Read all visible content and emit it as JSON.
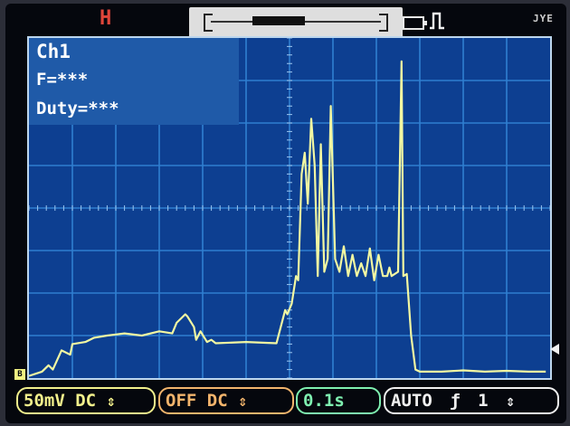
{
  "status": {
    "run_state": "H"
  },
  "brand": "JYE",
  "info": {
    "channel": "Ch1",
    "frequency": "F=***",
    "duty": "Duty=***"
  },
  "markers": {
    "channel_marker": "B"
  },
  "bottom_bar": {
    "vdiv": "50mV",
    "ch1_coupling": "DC",
    "ch2_state": "OFF",
    "ch2_coupling": "DC",
    "timebase": "0.1s",
    "trigger_mode": "AUTO",
    "trigger_edge_symbol": "ƒ",
    "trigger_channel": "1",
    "arrows": "⇕"
  },
  "chart_data": {
    "type": "line",
    "title": "",
    "xlabel": "",
    "ylabel": "",
    "grid": true,
    "divisions": {
      "x": 12,
      "y": 8
    },
    "xlim": [
      0,
      12
    ],
    "ylim": [
      0,
      8
    ],
    "colors": {
      "trace": "#f2f7a2",
      "grid": "#2f7fd0",
      "background": "#0d3f91"
    },
    "series": [
      {
        "name": "",
        "x": [
          0,
          0.3,
          0.45,
          0.55,
          0.75,
          0.95,
          1.0,
          1.3,
          1.5,
          1.8,
          2.2,
          2.6,
          3.0,
          3.3,
          3.4,
          3.6,
          3.65,
          3.8,
          3.85,
          3.95,
          4.1,
          4.2,
          4.3,
          5.0,
          5.7,
          5.9,
          5.95,
          6.05,
          6.15,
          6.2,
          6.28,
          6.35,
          6.42,
          6.5,
          6.58,
          6.65,
          6.72,
          6.8,
          6.88,
          6.95,
          7.05,
          7.15,
          7.25,
          7.35,
          7.45,
          7.55,
          7.65,
          7.75,
          7.85,
          7.95,
          8.05,
          8.15,
          8.25,
          8.3,
          8.35,
          8.5,
          8.58,
          8.62,
          8.7,
          8.8,
          8.9,
          9.0,
          9.5,
          10.0,
          10.5,
          11.0,
          11.5,
          11.9
        ],
        "y": [
          0.05,
          0.15,
          0.3,
          0.2,
          0.65,
          0.55,
          0.8,
          0.85,
          0.95,
          1.0,
          1.05,
          1.0,
          1.1,
          1.05,
          1.3,
          1.5,
          1.45,
          1.2,
          0.9,
          1.1,
          0.85,
          0.9,
          0.82,
          0.85,
          0.82,
          1.6,
          1.5,
          1.75,
          2.4,
          2.3,
          4.8,
          5.3,
          4.1,
          6.1,
          5.0,
          2.4,
          5.5,
          2.5,
          2.8,
          6.4,
          2.8,
          2.5,
          3.1,
          2.4,
          2.9,
          2.4,
          2.7,
          2.4,
          3.05,
          2.3,
          2.9,
          2.4,
          2.4,
          2.6,
          2.4,
          2.5,
          7.45,
          2.4,
          2.45,
          1.0,
          0.2,
          0.15,
          0.15,
          0.18,
          0.15,
          0.17,
          0.15,
          0.15
        ]
      }
    ]
  }
}
